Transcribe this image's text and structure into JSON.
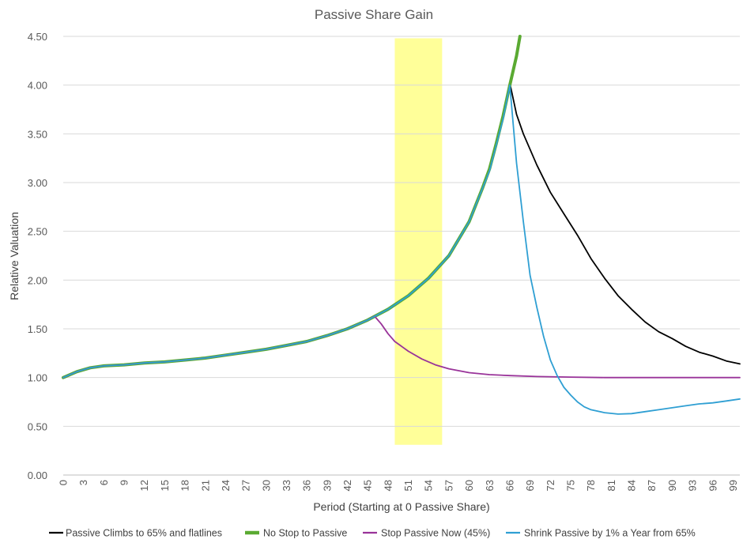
{
  "chart_data": {
    "type": "line",
    "title": "Passive Share Gain",
    "xlabel": "Period (Starting at 0 Passive Share)",
    "ylabel": "Relative Valuation",
    "xlim": [
      0,
      100
    ],
    "ylim": [
      0,
      4.5
    ],
    "yticks": [
      "0.00",
      "0.50",
      "1.00",
      "1.50",
      "2.00",
      "2.50",
      "3.00",
      "3.50",
      "4.00",
      "4.50"
    ],
    "xticks": [
      0,
      3,
      6,
      9,
      12,
      15,
      18,
      21,
      24,
      27,
      30,
      33,
      36,
      39,
      42,
      45,
      48,
      51,
      54,
      57,
      60,
      63,
      66,
      69,
      72,
      75,
      78,
      81,
      84,
      87,
      90,
      93,
      96,
      99
    ],
    "highlight": {
      "x_start": 49,
      "x_end": 56,
      "y_top": 4.48,
      "y_bottom": 0.31,
      "color": "#ffff99"
    },
    "legend_position": "bottom",
    "series": [
      {
        "name": "Passive Climbs to 65% and flatlines",
        "color": "#000000",
        "width": 1.8,
        "points": [
          [
            0,
            1.0
          ],
          [
            2,
            1.06
          ],
          [
            4,
            1.1
          ],
          [
            6,
            1.12
          ],
          [
            9,
            1.13
          ],
          [
            12,
            1.15
          ],
          [
            15,
            1.16
          ],
          [
            18,
            1.18
          ],
          [
            21,
            1.2
          ],
          [
            24,
            1.23
          ],
          [
            27,
            1.26
          ],
          [
            30,
            1.29
          ],
          [
            33,
            1.33
          ],
          [
            36,
            1.37
          ],
          [
            39,
            1.43
          ],
          [
            42,
            1.5
          ],
          [
            45,
            1.59
          ],
          [
            48,
            1.7
          ],
          [
            51,
            1.84
          ],
          [
            54,
            2.02
          ],
          [
            57,
            2.25
          ],
          [
            60,
            2.6
          ],
          [
            63,
            3.12
          ],
          [
            65,
            3.65
          ],
          [
            66,
            4.02
          ],
          [
            67,
            3.7
          ],
          [
            68,
            3.5
          ],
          [
            70,
            3.18
          ],
          [
            72,
            2.9
          ],
          [
            74,
            2.68
          ],
          [
            76,
            2.46
          ],
          [
            78,
            2.22
          ],
          [
            80,
            2.02
          ],
          [
            82,
            1.84
          ],
          [
            84,
            1.7
          ],
          [
            86,
            1.57
          ],
          [
            88,
            1.47
          ],
          [
            90,
            1.4
          ],
          [
            92,
            1.32
          ],
          [
            94,
            1.26
          ],
          [
            96,
            1.22
          ],
          [
            98,
            1.17
          ],
          [
            100,
            1.14
          ]
        ]
      },
      {
        "name": "No Stop to Passive",
        "color": "#5aaa32",
        "width": 4,
        "points": [
          [
            0,
            1.0
          ],
          [
            2,
            1.06
          ],
          [
            4,
            1.1
          ],
          [
            6,
            1.12
          ],
          [
            9,
            1.13
          ],
          [
            12,
            1.15
          ],
          [
            15,
            1.16
          ],
          [
            18,
            1.18
          ],
          [
            21,
            1.2
          ],
          [
            24,
            1.23
          ],
          [
            27,
            1.26
          ],
          [
            30,
            1.29
          ],
          [
            33,
            1.33
          ],
          [
            36,
            1.37
          ],
          [
            39,
            1.43
          ],
          [
            42,
            1.5
          ],
          [
            45,
            1.59
          ],
          [
            48,
            1.7
          ],
          [
            51,
            1.84
          ],
          [
            54,
            2.02
          ],
          [
            57,
            2.25
          ],
          [
            60,
            2.6
          ],
          [
            62,
            2.95
          ],
          [
            63,
            3.14
          ],
          [
            64,
            3.4
          ],
          [
            65,
            3.68
          ],
          [
            66,
            4.0
          ],
          [
            67,
            4.3
          ],
          [
            67.5,
            4.5
          ]
        ]
      },
      {
        "name": "Stop Passive Now (45%)",
        "color": "#993399",
        "width": 1.8,
        "points": [
          [
            0,
            1.0
          ],
          [
            2,
            1.06
          ],
          [
            4,
            1.1
          ],
          [
            6,
            1.12
          ],
          [
            9,
            1.13
          ],
          [
            12,
            1.15
          ],
          [
            15,
            1.16
          ],
          [
            18,
            1.18
          ],
          [
            21,
            1.2
          ],
          [
            24,
            1.23
          ],
          [
            27,
            1.26
          ],
          [
            30,
            1.29
          ],
          [
            33,
            1.33
          ],
          [
            36,
            1.37
          ],
          [
            39,
            1.43
          ],
          [
            42,
            1.5
          ],
          [
            45,
            1.59
          ],
          [
            46,
            1.63
          ],
          [
            47,
            1.55
          ],
          [
            48,
            1.45
          ],
          [
            49,
            1.37
          ],
          [
            51,
            1.27
          ],
          [
            53,
            1.19
          ],
          [
            55,
            1.13
          ],
          [
            57,
            1.09
          ],
          [
            60,
            1.05
          ],
          [
            63,
            1.03
          ],
          [
            66,
            1.02
          ],
          [
            70,
            1.01
          ],
          [
            75,
            1.005
          ],
          [
            80,
            1.0
          ],
          [
            90,
            1.0
          ],
          [
            100,
            1.0
          ]
        ]
      },
      {
        "name": "Shrink Passive by 1% a Year from 65%",
        "color": "#2f9fd3",
        "width": 1.8,
        "points": [
          [
            0,
            1.0
          ],
          [
            2,
            1.06
          ],
          [
            4,
            1.1
          ],
          [
            6,
            1.12
          ],
          [
            9,
            1.13
          ],
          [
            12,
            1.15
          ],
          [
            15,
            1.16
          ],
          [
            18,
            1.18
          ],
          [
            21,
            1.2
          ],
          [
            24,
            1.23
          ],
          [
            27,
            1.26
          ],
          [
            30,
            1.29
          ],
          [
            33,
            1.33
          ],
          [
            36,
            1.37
          ],
          [
            39,
            1.43
          ],
          [
            42,
            1.5
          ],
          [
            45,
            1.59
          ],
          [
            48,
            1.7
          ],
          [
            51,
            1.84
          ],
          [
            54,
            2.02
          ],
          [
            57,
            2.25
          ],
          [
            60,
            2.6
          ],
          [
            63,
            3.12
          ],
          [
            65,
            3.65
          ],
          [
            66,
            4.0
          ],
          [
            67,
            3.2
          ],
          [
            68,
            2.6
          ],
          [
            69,
            2.05
          ],
          [
            70,
            1.72
          ],
          [
            71,
            1.42
          ],
          [
            72,
            1.18
          ],
          [
            73,
            1.02
          ],
          [
            74,
            0.9
          ],
          [
            75,
            0.82
          ],
          [
            76,
            0.75
          ],
          [
            77,
            0.7
          ],
          [
            78,
            0.67
          ],
          [
            80,
            0.64
          ],
          [
            82,
            0.625
          ],
          [
            84,
            0.63
          ],
          [
            86,
            0.65
          ],
          [
            88,
            0.67
          ],
          [
            90,
            0.69
          ],
          [
            92,
            0.71
          ],
          [
            94,
            0.73
          ],
          [
            96,
            0.74
          ],
          [
            98,
            0.76
          ],
          [
            100,
            0.78
          ]
        ]
      }
    ]
  }
}
